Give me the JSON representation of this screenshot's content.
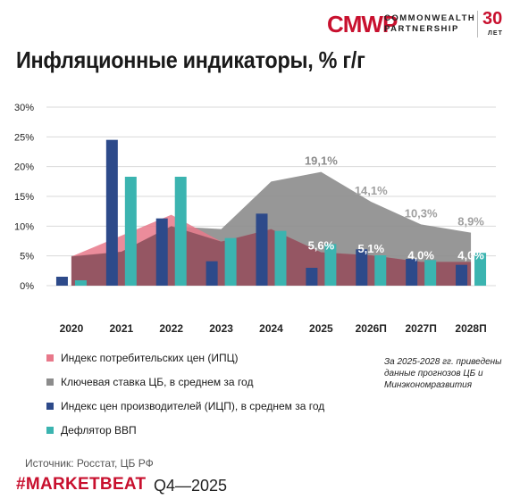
{
  "logo": {
    "mark": "CMWP",
    "line1": "COMMONWEALTH",
    "line2": "PARTNERSHIP",
    "years": "30",
    "years_label": "ЛЕТ"
  },
  "title": "Инфляционные индикаторы, % г/г",
  "chart_data": {
    "type": "bar",
    "categories": [
      "2020",
      "2021",
      "2022",
      "2023",
      "2024",
      "2025",
      "2026П",
      "2027П",
      "2028П"
    ],
    "ylim": [
      0,
      30
    ],
    "yticks": [
      "0%",
      "5%",
      "10%",
      "15%",
      "20%",
      "25%",
      "30%"
    ],
    "series": [
      {
        "name": "Индекс потребительских цен (ИПЦ)",
        "render": "area",
        "color": "#e8788a",
        "values": [
          4.9,
          8.4,
          11.9,
          7.4,
          9.5,
          5.6,
          5.1,
          4.0,
          4.0
        ]
      },
      {
        "name": "Ключевая ставка ЦБ, в среднем за год",
        "render": "area",
        "color": "#8c8c8c",
        "values": [
          5.0,
          5.7,
          10.0,
          9.5,
          17.5,
          19.1,
          14.1,
          10.3,
          8.9
        ]
      },
      {
        "name": "Индекс цен производителей (ИЦП), в среднем за год",
        "render": "bar",
        "color": "#2d4a8a",
        "values": [
          1.5,
          24.5,
          11.3,
          4.1,
          12.1,
          3.0,
          6.1,
          4.5,
          3.5
        ]
      },
      {
        "name": "Дефлятор ВВП",
        "render": "bar",
        "color": "#3bb4b0",
        "values": [
          0.9,
          18.3,
          18.3,
          8.0,
          9.2,
          7.0,
          5.1,
          4.3,
          5.5
        ]
      }
    ],
    "annotations": [
      {
        "category": "2025",
        "text": "19,1%",
        "color": "#8c8c8c",
        "value": 19.1
      },
      {
        "category": "2026П",
        "text": "14,1%",
        "color": "#a0a0a0",
        "value": 14.1
      },
      {
        "category": "2027П",
        "text": "10,3%",
        "color": "#a0a0a0",
        "value": 10.3
      },
      {
        "category": "2028П",
        "text": "8,9%",
        "color": "#a0a0a0",
        "value": 8.9
      },
      {
        "category": "2025",
        "text": "5,6%",
        "color": "#ffffff",
        "value": 5.6
      },
      {
        "category": "2026П",
        "text": "5,1%",
        "color": "#ffffff",
        "value": 5.1
      },
      {
        "category": "2027П",
        "text": "4,0%",
        "color": "#ffffff",
        "value": 4.0
      },
      {
        "category": "2028П",
        "text": "4,0%",
        "color": "#ffffff",
        "value": 4.0
      }
    ],
    "grid": true,
    "legend_position": "bottom-left"
  },
  "legend": [
    {
      "label": "Индекс потребительских цен (ИПЦ)",
      "color": "#e8788a"
    },
    {
      "label": "Ключевая ставка ЦБ, в среднем за год",
      "color": "#8c8c8c"
    },
    {
      "label": "Индекс цен производителей (ИЦП), в среднем за год",
      "color": "#2d4a8a"
    },
    {
      "label": "Дефлятор ВВП",
      "color": "#3bb4b0"
    }
  ],
  "note": "За 2025-2028 гг. приведены данные прогнозов ЦБ и Минэкономразвития",
  "source": "Источник: Росстат, ЦБ РФ",
  "footer": {
    "tag": "#MARKETBEAT",
    "period": "Q4—2025"
  }
}
